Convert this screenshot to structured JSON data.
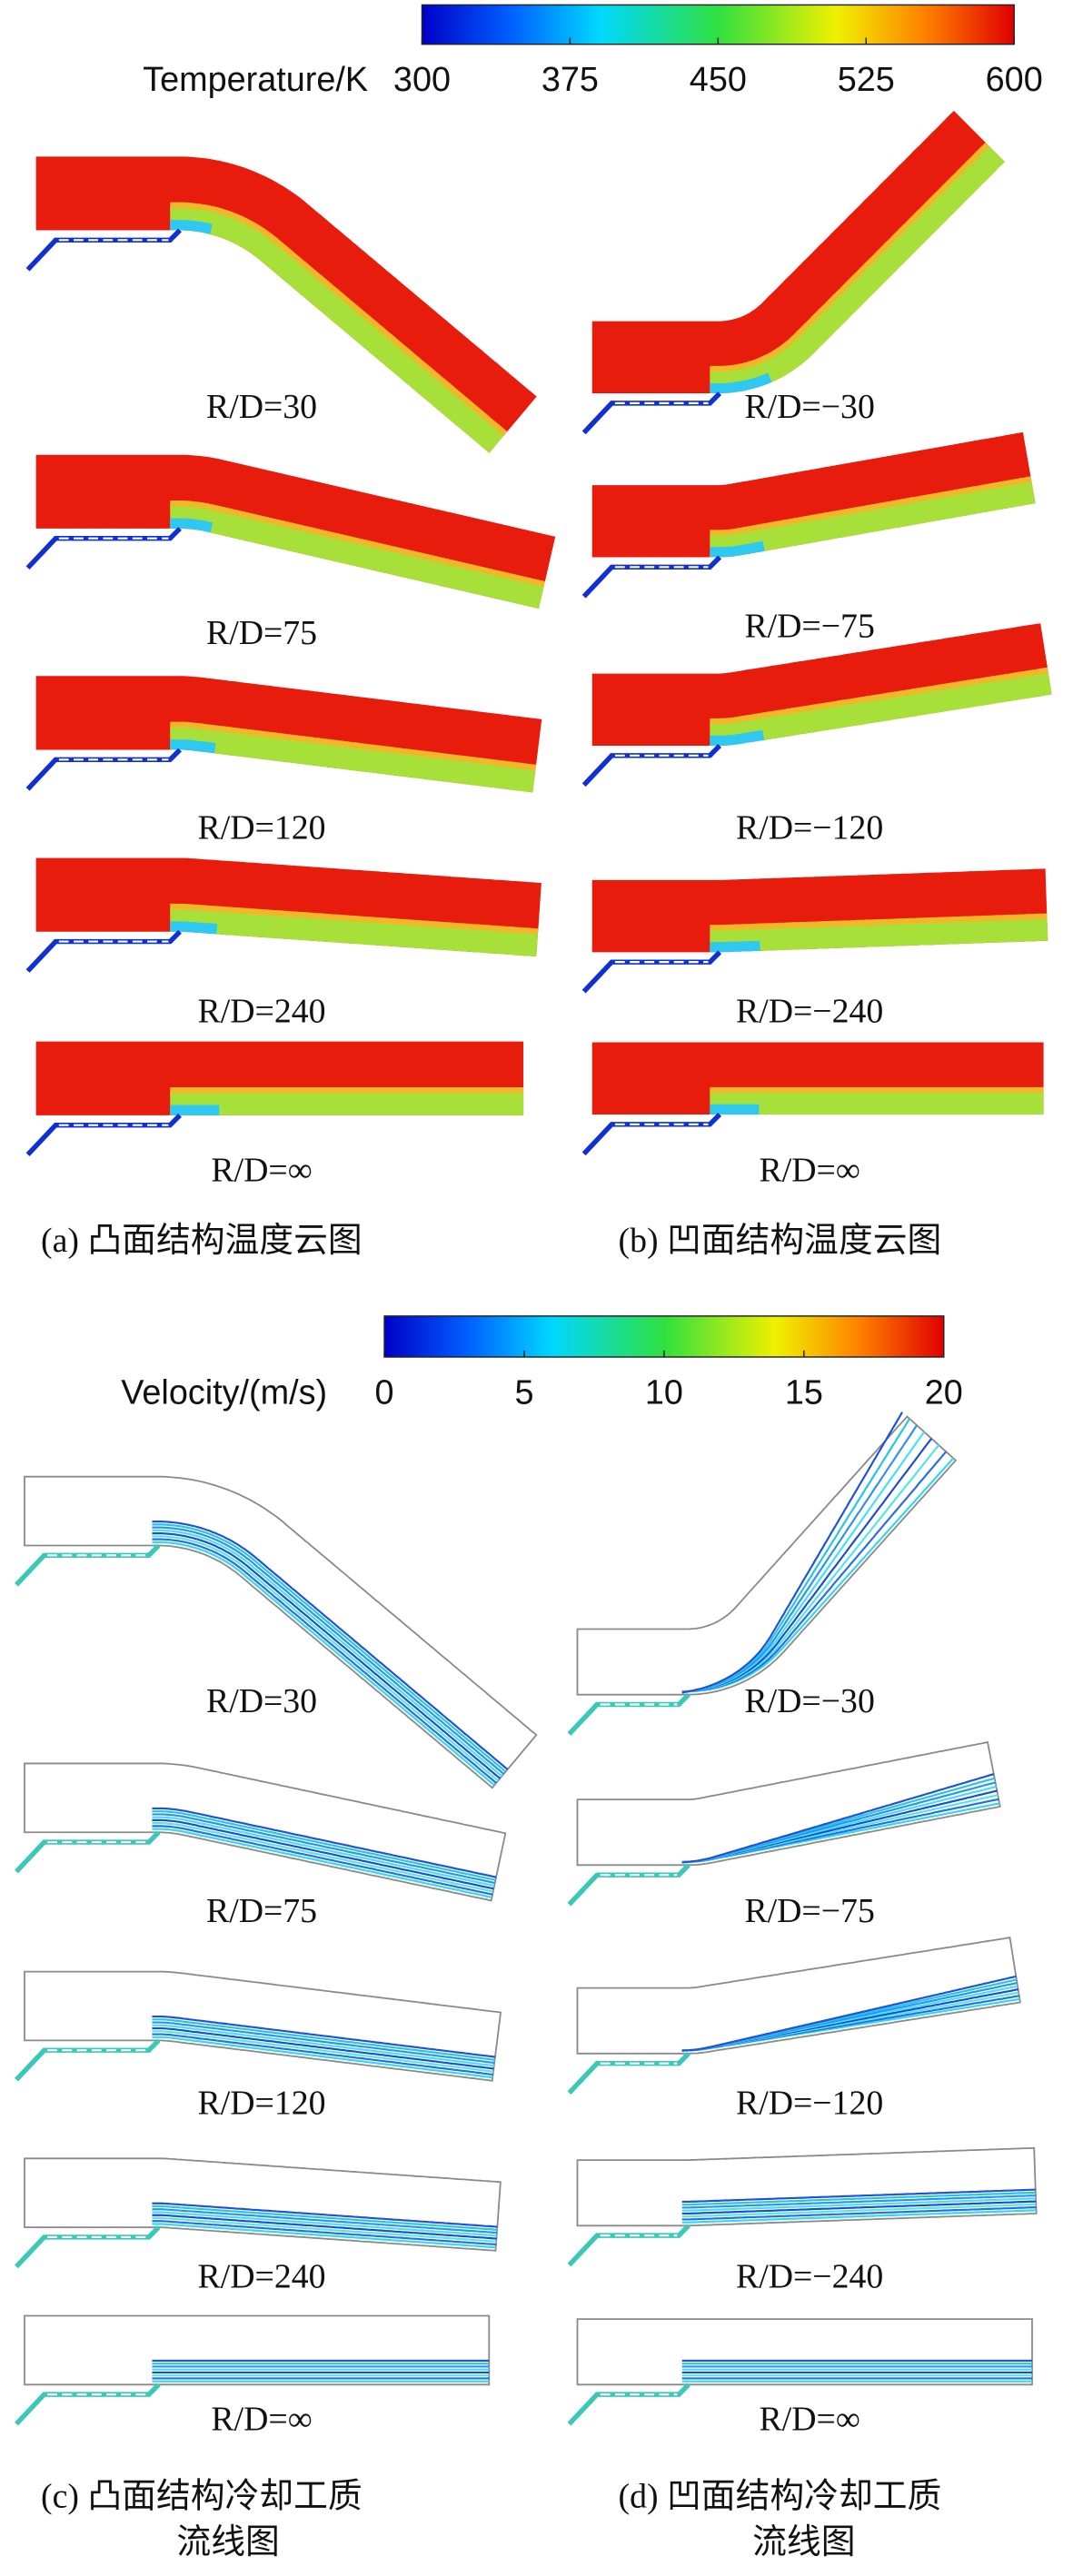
{
  "temperature_colorbar": {
    "label": "Temperature/K",
    "range": [
      300,
      600
    ],
    "ticks": [
      300,
      375,
      450,
      525,
      600
    ]
  },
  "temperature_panels": {
    "convex": [
      "R/D=30",
      "R/D=75",
      "R/D=120",
      "R/D=240",
      "R/D=∞"
    ],
    "concave": [
      "R/D=−30",
      "R/D=−75",
      "R/D=−120",
      "R/D=−240",
      "R/D=∞"
    ]
  },
  "temperature_captions": [
    "(a) 凸面结构温度云图",
    "(b) 凹面结构温度云图"
  ],
  "velocity_colorbar": {
    "label": "Velocity/(m/s)",
    "range": [
      0,
      20
    ],
    "ticks": [
      0,
      5,
      10,
      15,
      20
    ]
  },
  "streamline_panels": {
    "convex": [
      "R/D=30",
      "R/D=75",
      "R/D=120",
      "R/D=240",
      "R/D=∞"
    ],
    "concave": [
      "R/D=−30",
      "R/D=−75",
      "R/D=−120",
      "R/D=−240",
      "R/D=∞"
    ]
  },
  "streamline_captions": [
    [
      "(c) 凸面结构冷却工质",
      "流线图"
    ],
    [
      "(d) 凹面结构冷却工质",
      "流线图"
    ]
  ]
}
